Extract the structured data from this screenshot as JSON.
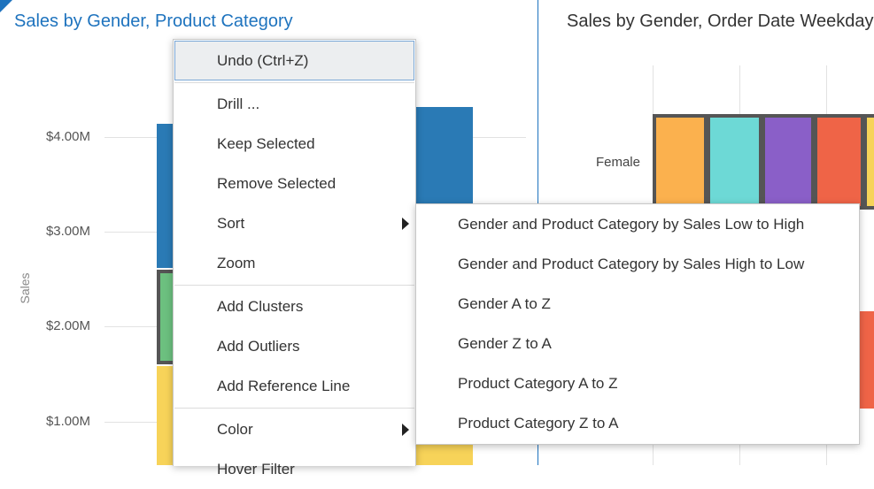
{
  "left_chart": {
    "title": "Sales by Gender, Product Category",
    "y_label": "Sales",
    "y_ticks": [
      "$4.00M",
      "$3.00M",
      "$2.00M",
      "$1.00M"
    ]
  },
  "right_chart": {
    "title": "Sales by Gender, Order Date Weekday",
    "row_label": "Female"
  },
  "colors": {
    "blue": "#2a7ab5",
    "green": "#6cc07f",
    "yellow": "#f7d359",
    "orange": "#fbb14e",
    "teal": "#6dd9d6",
    "purple": "#8a5fc8",
    "red": "#ef6447",
    "accent": "#1e73be"
  },
  "context_menu": {
    "items": [
      {
        "label": "Undo (Ctrl+Z)"
      },
      {
        "label": "Drill ..."
      },
      {
        "label": "Keep Selected"
      },
      {
        "label": "Remove Selected"
      },
      {
        "label": "Sort"
      },
      {
        "label": "Zoom"
      },
      {
        "label": "Add Clusters"
      },
      {
        "label": "Add Outliers"
      },
      {
        "label": "Add Reference Line"
      },
      {
        "label": "Color"
      },
      {
        "label": "Hover Filter"
      }
    ]
  },
  "sort_submenu": {
    "items": [
      {
        "label": "Gender and Product Category by Sales Low to High"
      },
      {
        "label": "Gender and Product Category by Sales High to Low"
      },
      {
        "label": "Gender A to Z"
      },
      {
        "label": "Gender Z to A"
      },
      {
        "label": "Product Category A to Z"
      },
      {
        "label": "Product Category Z to A"
      }
    ]
  }
}
